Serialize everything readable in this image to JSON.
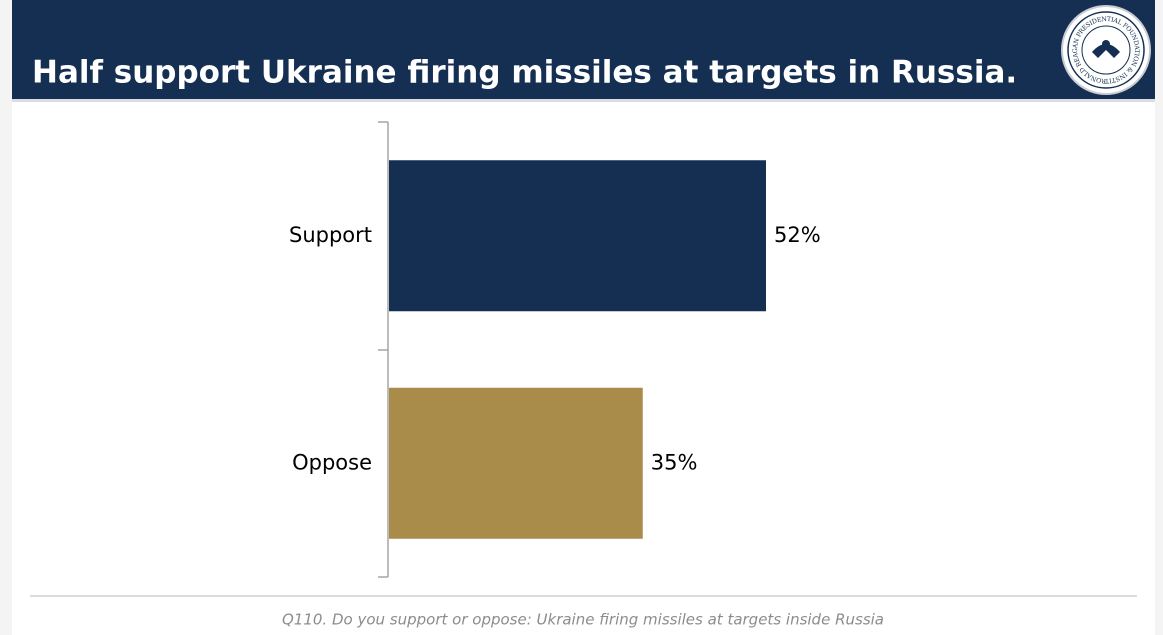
{
  "chart_data": {
    "type": "bar",
    "orientation": "horizontal",
    "title": "Half support Ukraine firing missiles at targets in Russia.",
    "categories": [
      "Support",
      "Oppose"
    ],
    "values": [
      52,
      35
    ],
    "value_labels": [
      "52%",
      "35%"
    ],
    "colors": [
      "#142f52",
      "#a98b4a"
    ],
    "footnote": "Q110. Do you support or oppose: Ukraine firing missiles at targets inside Russia",
    "logo_text": "RONALD REAGAN PRESIDENTIAL FOUNDATION & INSTITUTE"
  }
}
